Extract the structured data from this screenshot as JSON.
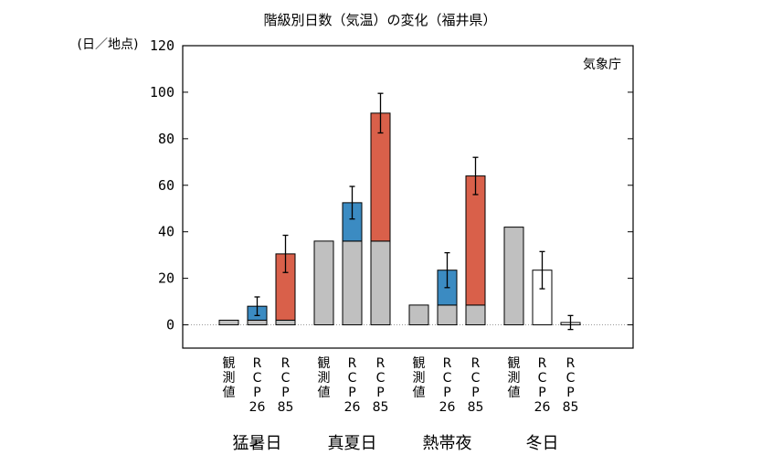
{
  "chart_data": {
    "type": "bar",
    "title": "階級別日数（気温）の変化（福井県）",
    "ylabel": "(日／地点)",
    "source": "気象庁",
    "ylim": [
      -10,
      120
    ],
    "yticks": [
      0,
      20,
      40,
      60,
      80,
      100,
      120
    ],
    "zero_line": "dotted",
    "groups": [
      {
        "name": "猛暑日",
        "bars": [
          {
            "label": [
              "観",
              "測",
              "値"
            ],
            "base": 2,
            "change": 0,
            "error": null,
            "style": "observed"
          },
          {
            "label": [
              "R",
              "C",
              "P",
              "26"
            ],
            "base": 2,
            "change": 6,
            "error": 4,
            "style": "rcp26"
          },
          {
            "label": [
              "R",
              "C",
              "P",
              "85"
            ],
            "base": 2,
            "change": 28.5,
            "error": 8,
            "style": "rcp85"
          }
        ]
      },
      {
        "name": "真夏日",
        "bars": [
          {
            "label": [
              "観",
              "測",
              "値"
            ],
            "base": 36,
            "change": 0,
            "error": null,
            "style": "observed"
          },
          {
            "label": [
              "R",
              "C",
              "P",
              "26"
            ],
            "base": 36,
            "change": 16.5,
            "error": 7,
            "style": "rcp26"
          },
          {
            "label": [
              "R",
              "C",
              "P",
              "85"
            ],
            "base": 36,
            "change": 55,
            "error": 8.5,
            "style": "rcp85"
          }
        ]
      },
      {
        "name": "熱帯夜",
        "bars": [
          {
            "label": [
              "観",
              "測",
              "値"
            ],
            "base": 8.5,
            "change": 0,
            "error": null,
            "style": "observed"
          },
          {
            "label": [
              "R",
              "C",
              "P",
              "26"
            ],
            "base": 8.5,
            "change": 15,
            "error": 7.5,
            "style": "rcp26"
          },
          {
            "label": [
              "R",
              "C",
              "P",
              "85"
            ],
            "base": 8.5,
            "change": 55.5,
            "error": 8,
            "style": "rcp85"
          }
        ]
      },
      {
        "name": "冬日",
        "bars": [
          {
            "label": [
              "観",
              "測",
              "値"
            ],
            "base": 42,
            "change": 0,
            "error": null,
            "style": "observed"
          },
          {
            "label": [
              "R",
              "C",
              "P",
              "26"
            ],
            "base": 23.5,
            "change": -18.5,
            "error": 8,
            "style": "rcp26-decrease"
          },
          {
            "label": [
              "R",
              "C",
              "P",
              "85"
            ],
            "base": 1,
            "change": -41,
            "error": 3,
            "style": "rcp85-decrease"
          }
        ]
      }
    ],
    "colors": {
      "observed": "#c0c0c0",
      "rcp26": "#3b8bc2",
      "rcp85": "#d9604a",
      "hatch26": "#6fa8c8",
      "hatch85": "#e07a6a",
      "outline": "#000000"
    }
  }
}
